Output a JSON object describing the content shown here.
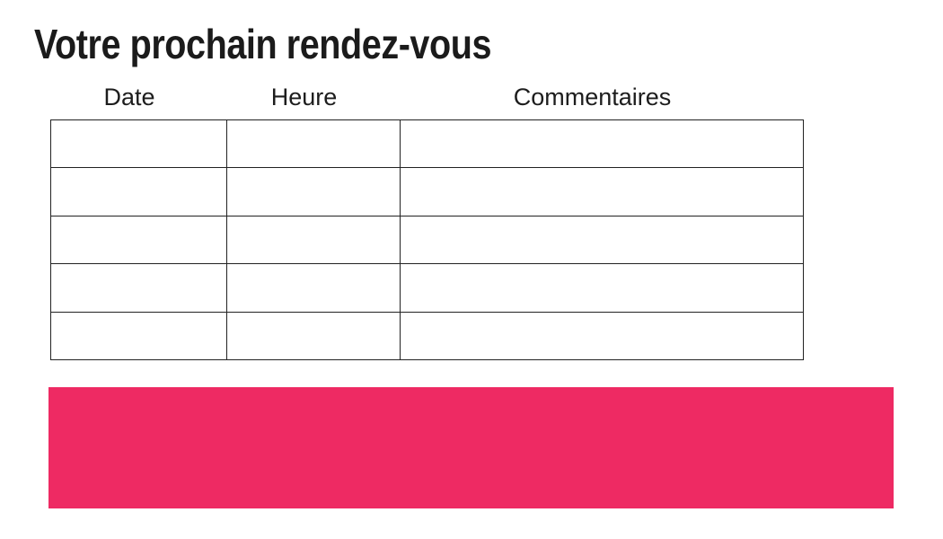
{
  "title": "Votre prochain rendez-vous",
  "table": {
    "columns": [
      {
        "label": "Date"
      },
      {
        "label": "Heure"
      },
      {
        "label": "Commentaires"
      }
    ],
    "rows": [
      [
        "",
        "",
        ""
      ],
      [
        "",
        "",
        ""
      ],
      [
        "",
        "",
        ""
      ],
      [
        "",
        "",
        ""
      ],
      [
        "",
        "",
        ""
      ]
    ]
  },
  "accent_banner": {
    "text": ""
  },
  "colors": {
    "accent_pink": "#EE2A63",
    "text": "#1B1B1B",
    "table_border": "#222222",
    "background": "#FFFFFF"
  }
}
